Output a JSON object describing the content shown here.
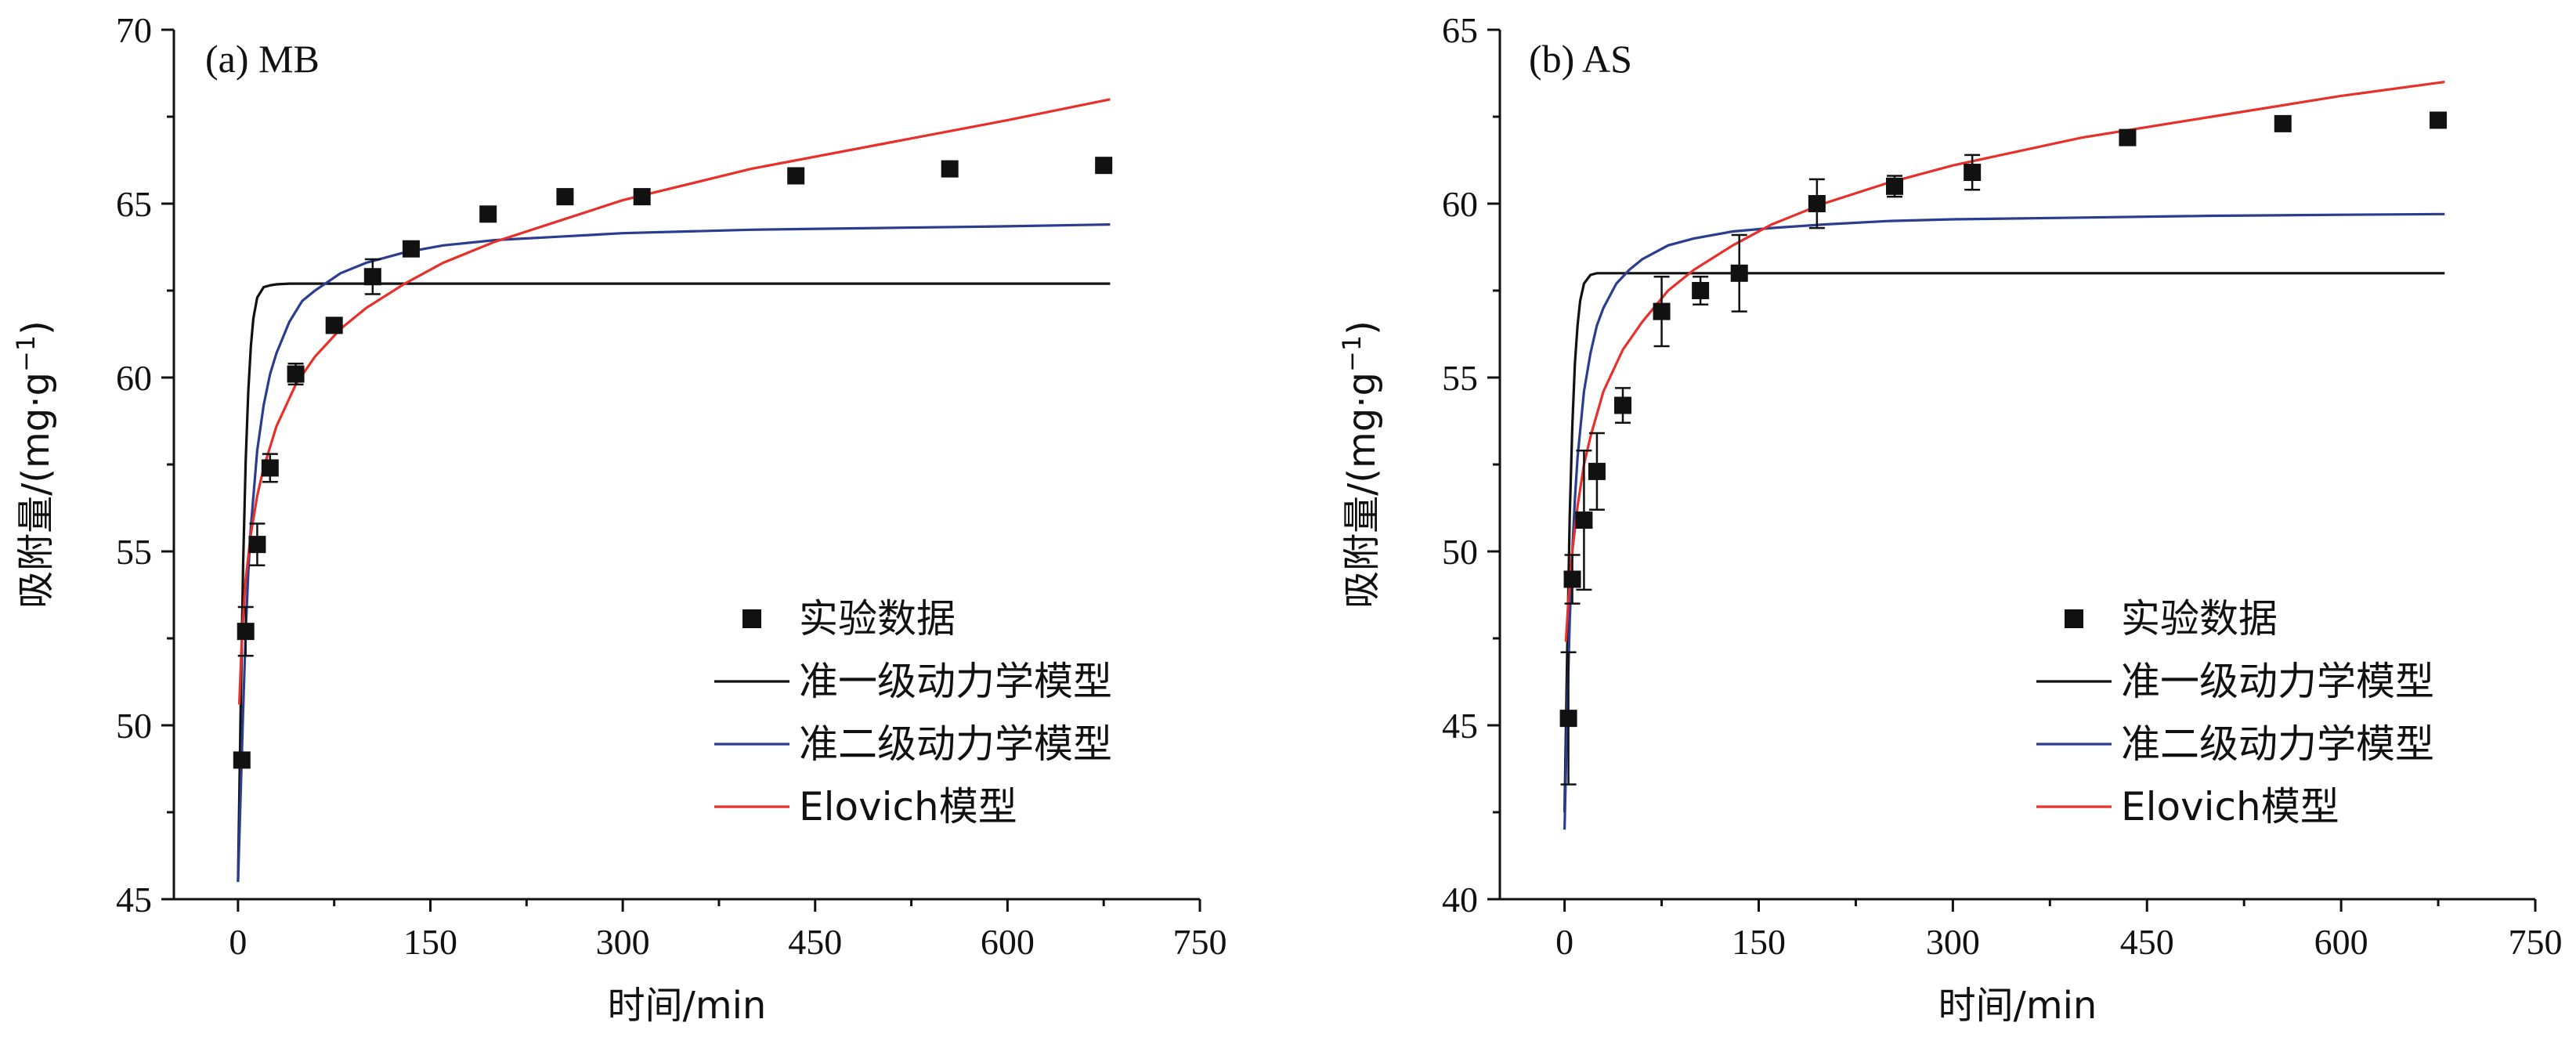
{
  "chart_data": [
    {
      "type": "scatter",
      "panel_label": "(a)  MB",
      "xlabel": "时间/min",
      "ylabel_main": "吸附量/(mg·g",
      "ylabel_sup": "−1",
      "ylabel_close": ")",
      "xlim": [
        -50,
        750
      ],
      "ylim": [
        45,
        70
      ],
      "xticks": [
        0,
        150,
        300,
        450,
        600,
        750
      ],
      "yticks": [
        45,
        50,
        55,
        60,
        65,
        70
      ],
      "legend_position": "bottom-right",
      "series": [
        {
          "name": "实验数据",
          "kind": "points",
          "color": "#111111",
          "x": [
            3,
            6,
            15,
            25,
            45,
            75,
            105,
            135,
            195,
            255,
            315,
            435,
            555,
            675
          ],
          "y": [
            49.0,
            52.7,
            55.2,
            57.4,
            60.1,
            61.5,
            62.9,
            63.7,
            64.7,
            65.2,
            65.2,
            65.8,
            66.0,
            66.1
          ],
          "err": [
            0,
            0.7,
            0.6,
            0.4,
            0.3,
            0,
            0.5,
            0.2,
            0,
            0,
            0.2,
            0,
            0,
            0
          ]
        },
        {
          "name": "准一级动力学模型",
          "kind": "line",
          "color": "#111111",
          "x": [
            0,
            2,
            4,
            6,
            8,
            10,
            12,
            15,
            20,
            25,
            30,
            40,
            60,
            100,
            200,
            400,
            680
          ],
          "y": [
            45.5,
            50.2,
            54.6,
            57.6,
            59.6,
            60.9,
            61.7,
            62.3,
            62.6,
            62.65,
            62.68,
            62.7,
            62.7,
            62.7,
            62.7,
            62.7,
            62.7
          ]
        },
        {
          "name": "准二级动力学模型",
          "kind": "line",
          "color": "#2b3d8f",
          "x": [
            0,
            2,
            4,
            6,
            8,
            10,
            15,
            20,
            25,
            30,
            40,
            50,
            60,
            80,
            100,
            130,
            160,
            200,
            250,
            300,
            400,
            500,
            600,
            680
          ],
          "y": [
            45.5,
            47.9,
            50.4,
            52.7,
            54.4,
            55.7,
            57.9,
            59.2,
            60.1,
            60.7,
            61.6,
            62.2,
            62.5,
            63.0,
            63.3,
            63.6,
            63.8,
            63.95,
            64.05,
            64.15,
            64.25,
            64.3,
            64.35,
            64.4
          ]
        },
        {
          "name": "Elovich模型",
          "kind": "line",
          "color": "#e8302a",
          "x": [
            1,
            3,
            6,
            10,
            15,
            20,
            30,
            45,
            60,
            80,
            100,
            130,
            160,
            200,
            250,
            300,
            400,
            500,
            600,
            680
          ],
          "y": [
            50.6,
            52.5,
            54.2,
            55.5,
            56.6,
            57.4,
            58.6,
            59.8,
            60.6,
            61.4,
            62.0,
            62.7,
            63.3,
            63.9,
            64.5,
            65.1,
            66.0,
            66.7,
            67.4,
            68.0
          ]
        }
      ]
    },
    {
      "type": "scatter",
      "panel_label": "(b)  AS",
      "xlabel": "时间/min",
      "ylabel_main": "吸附量/(mg·g",
      "ylabel_sup": "−1",
      "ylabel_close": ")",
      "xlim": [
        -50,
        750
      ],
      "ylim": [
        40,
        65
      ],
      "xticks": [
        0,
        150,
        300,
        450,
        600,
        750
      ],
      "yticks": [
        40,
        45,
        50,
        55,
        60,
        65
      ],
      "legend_position": "bottom-right",
      "series": [
        {
          "name": "实验数据",
          "kind": "points",
          "color": "#111111",
          "x": [
            3,
            6,
            15,
            25,
            45,
            75,
            105,
            135,
            195,
            255,
            315,
            435,
            555,
            675
          ],
          "y": [
            45.2,
            49.2,
            50.9,
            52.3,
            54.2,
            56.9,
            57.5,
            58.0,
            60.0,
            60.5,
            60.9,
            61.9,
            62.3,
            62.4
          ],
          "err": [
            1.9,
            0.7,
            2.0,
            1.1,
            0.5,
            1.0,
            0.4,
            1.1,
            0.7,
            0.3,
            0.5,
            0.2,
            0,
            0
          ]
        },
        {
          "name": "准一级动力学模型",
          "kind": "line",
          "color": "#111111",
          "x": [
            0,
            2,
            4,
            6,
            8,
            10,
            12,
            15,
            20,
            25,
            30,
            40,
            60,
            100,
            200,
            400,
            680
          ],
          "y": [
            42.5,
            47.0,
            51.0,
            53.6,
            55.4,
            56.5,
            57.2,
            57.7,
            57.95,
            58.0,
            58.0,
            58.0,
            58.0,
            58.0,
            58.0,
            58.0,
            58.0
          ]
        },
        {
          "name": "准二级动力学模型",
          "kind": "line",
          "color": "#2b3d8f",
          "x": [
            0,
            2,
            4,
            6,
            8,
            10,
            15,
            20,
            25,
            30,
            40,
            50,
            60,
            80,
            100,
            130,
            160,
            200,
            250,
            300,
            400,
            500,
            600,
            680
          ],
          "y": [
            42.0,
            45.3,
            48.0,
            50.0,
            51.5,
            52.7,
            54.6,
            55.7,
            56.5,
            57.0,
            57.7,
            58.1,
            58.4,
            58.8,
            59.0,
            59.2,
            59.3,
            59.4,
            59.5,
            59.55,
            59.6,
            59.65,
            59.68,
            59.7
          ]
        },
        {
          "name": "Elovich模型",
          "kind": "line",
          "color": "#e8302a",
          "x": [
            1,
            3,
            6,
            10,
            15,
            20,
            30,
            45,
            60,
            80,
            100,
            130,
            160,
            200,
            250,
            300,
            400,
            500,
            600,
            680
          ],
          "y": [
            47.4,
            48.6,
            50.0,
            51.3,
            52.5,
            53.3,
            54.6,
            55.8,
            56.6,
            57.5,
            58.1,
            58.8,
            59.4,
            60.0,
            60.6,
            61.1,
            61.9,
            62.5,
            63.1,
            63.5
          ]
        }
      ]
    }
  ]
}
